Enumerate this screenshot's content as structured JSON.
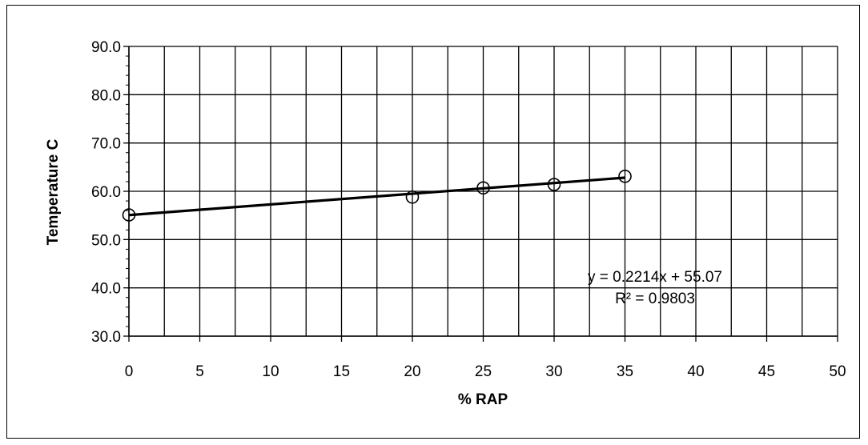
{
  "chart_data": {
    "type": "scatter",
    "title": "",
    "xlabel": "% RAP",
    "ylabel": "Temperature C",
    "xlim": [
      0,
      50
    ],
    "ylim": [
      30,
      90
    ],
    "x_major_ticks": [
      0,
      5,
      10,
      15,
      20,
      25,
      30,
      35,
      40,
      45,
      50
    ],
    "x_tick_labels": [
      "0",
      "5",
      "10",
      "15",
      "20",
      "25",
      "30",
      "35",
      "40",
      "45",
      "50"
    ],
    "x_minor_step": 2.5,
    "y_major_ticks": [
      30,
      40,
      50,
      60,
      70,
      80,
      90
    ],
    "y_tick_labels": [
      "30.0",
      "40.0",
      "50.0",
      "60.0",
      "70.0",
      "80.0",
      "90.0"
    ],
    "y_minor_step": 2,
    "grid": true,
    "legend": "none",
    "series": [
      {
        "x": [
          0,
          20,
          25,
          30,
          35
        ],
        "y": [
          55.1,
          58.8,
          60.7,
          61.4,
          63.1
        ],
        "marker": "open-circle",
        "color": "#000000"
      }
    ],
    "trendline": {
      "type": "linear",
      "slope": 0.2214,
      "intercept": 55.07,
      "x_range": [
        0,
        35
      ],
      "equation_label": "y = 0.2214x + 55.07",
      "r2_label": "R² = 0.9803"
    }
  }
}
